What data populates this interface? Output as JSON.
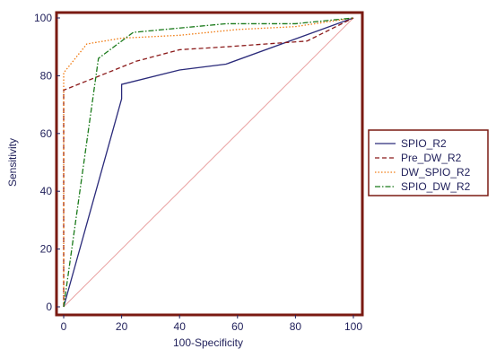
{
  "chart_data": {
    "type": "line",
    "title": "",
    "xlabel": "100-Specificity",
    "ylabel": "Sensitivity",
    "xlim": [
      0,
      100
    ],
    "ylim": [
      0,
      100
    ],
    "x_ticks": [
      0,
      20,
      40,
      60,
      80,
      100
    ],
    "y_ticks": [
      0,
      20,
      40,
      60,
      80,
      100
    ],
    "grid": false,
    "legend_position": "right",
    "frame_color": "#7a1a12",
    "series": [
      {
        "name": "SPIO_R2",
        "color": "#2a2a7a",
        "dash": "solid",
        "points": [
          [
            0,
            0
          ],
          [
            20,
            72
          ],
          [
            20,
            77
          ],
          [
            40,
            82
          ],
          [
            56,
            84
          ],
          [
            100,
            100
          ]
        ]
      },
      {
        "name": "Pre_DW_R2",
        "color": "#8b1a1a",
        "dash": "dashed",
        "points": [
          [
            0,
            0
          ],
          [
            0,
            75
          ],
          [
            10,
            79
          ],
          [
            25,
            85
          ],
          [
            40,
            89
          ],
          [
            56,
            90
          ],
          [
            84,
            92
          ],
          [
            100,
            100
          ]
        ]
      },
      {
        "name": "DW_SPIO_R2",
        "color": "#f07a10",
        "dash": "dotted",
        "points": [
          [
            0,
            0
          ],
          [
            0,
            81
          ],
          [
            8,
            91
          ],
          [
            20,
            93
          ],
          [
            40,
            94
          ],
          [
            60,
            96
          ],
          [
            80,
            97
          ],
          [
            100,
            100
          ]
        ]
      },
      {
        "name": "SPIO_DW_R2",
        "color": "#1a7a1a",
        "dash": "dashdot",
        "points": [
          [
            0,
            0
          ],
          [
            12,
            86
          ],
          [
            24,
            95
          ],
          [
            40,
            96.5
          ],
          [
            56,
            98
          ],
          [
            80,
            98
          ],
          [
            100,
            100
          ]
        ]
      }
    ],
    "reference_line": {
      "color": "#e9a0a0",
      "points": [
        [
          0,
          0
        ],
        [
          100,
          100
        ]
      ]
    }
  }
}
